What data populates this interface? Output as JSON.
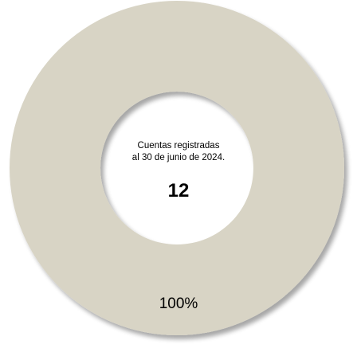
{
  "chart_data": {
    "type": "pie",
    "donut": true,
    "slices": [
      {
        "value": 100,
        "label": "100%",
        "color": "#d8d4c5"
      }
    ],
    "center": {
      "caption_line1": "Cuentas registradas",
      "caption_line2": "al 30 de junio de 2024.",
      "value": "12"
    },
    "legend": "none",
    "shadow": true
  },
  "colors": {
    "slice": "#d8d4c5",
    "shadow": "#000000",
    "background": "#ffffff"
  }
}
